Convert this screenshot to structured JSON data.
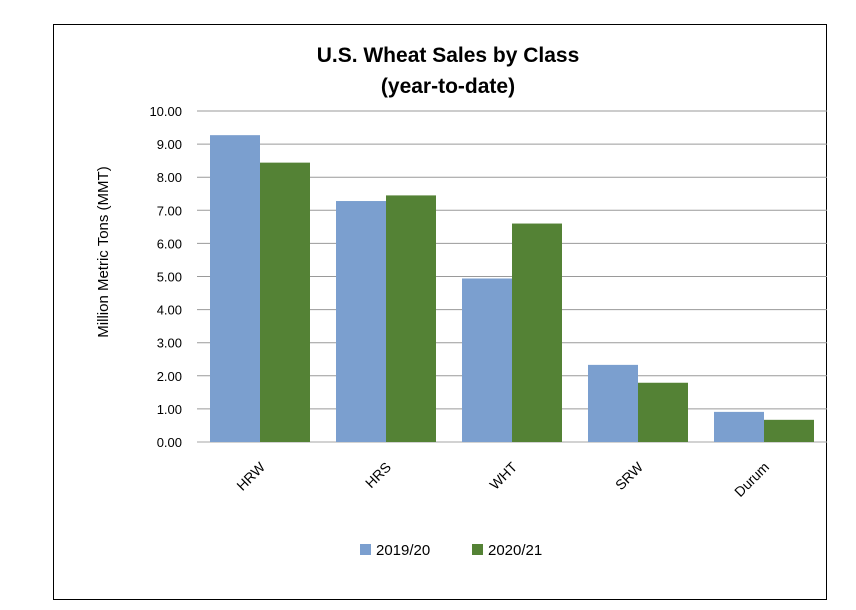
{
  "chart_data": {
    "type": "bar",
    "title": "U.S. Wheat Sales by Class",
    "subtitle": "(year-to-date)",
    "xlabel": "",
    "ylabel": "Million Metric Tons (MMT)",
    "categories": [
      "HRW",
      "HRS",
      "WHT",
      "SRW",
      "Durum"
    ],
    "series": [
      {
        "name": "2019/20",
        "color": "#7B9FCF",
        "values": [
          9.27,
          7.28,
          4.94,
          2.33,
          0.91
        ]
      },
      {
        "name": "2020/21",
        "color": "#548235",
        "values": [
          8.44,
          7.45,
          6.6,
          1.79,
          0.67
        ]
      }
    ],
    "ylim": [
      0,
      10
    ],
    "yticks": [
      "0.00",
      "1.00",
      "2.00",
      "3.00",
      "4.00",
      "5.00",
      "6.00",
      "7.00",
      "8.00",
      "9.00",
      "10.00"
    ],
    "grid": true,
    "legend_position": "bottom"
  }
}
